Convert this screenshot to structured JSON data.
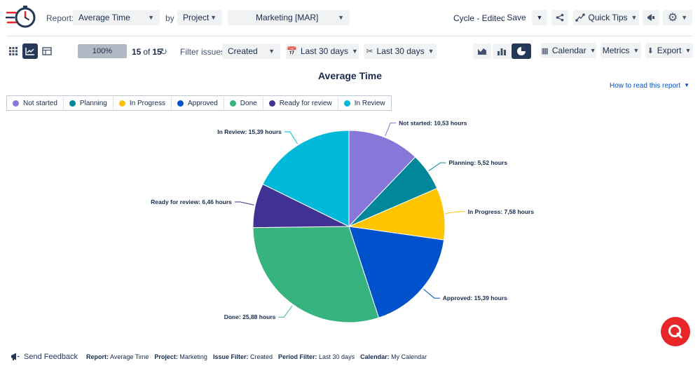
{
  "header": {
    "report_label": "Report:",
    "report_value": "Average Time",
    "by_label": "by",
    "by_value": "Project",
    "project_value": "Marketing [MAR]",
    "cycle_status": "Cycle - Edited",
    "save_label": "Save",
    "quick_tips_label": "Quick Tips"
  },
  "toolbar": {
    "progress_value": "100%",
    "progress_fraction": 1.0,
    "count_current": "15",
    "count_of": "of",
    "count_total": "15",
    "filter_label": "Filter issues:",
    "filter_value": "Created",
    "period_filter": "Last 30 days",
    "period_compare": "Last 30 days",
    "calendar_label": "Calendar",
    "metrics_label": "Metrics",
    "export_label": "Export"
  },
  "chart_title": "Average Time",
  "help_link": "How to read this report",
  "colors": {
    "Not started": "#8777d9",
    "Planning": "#00879a",
    "In Progress": "#ffc400",
    "Approved": "#0052cc",
    "Done": "#36b37e",
    "Ready for review": "#403294",
    "In Review": "#00b8d9",
    "accent": "#0052cc",
    "brand_red": "#e8262a"
  },
  "chart_data": {
    "type": "pie",
    "title": "Average Time",
    "unit": "hours",
    "categories": [
      "Not started",
      "Planning",
      "In Progress",
      "Approved",
      "Done",
      "Ready for review",
      "In Review"
    ],
    "values": [
      10.53,
      5.52,
      7.58,
      15.39,
      25.88,
      6.46,
      15.39
    ],
    "labels": [
      "Not started: 10,53 hours",
      "Planning: 5,52 hours",
      "In Progress: 7,58 hours",
      "Approved: 15,39 hours",
      "Done: 25,88 hours",
      "Ready for review: 6,46 hours",
      "In Review: 15,39 hours"
    ],
    "legend_position": "top-left"
  },
  "footer": {
    "send_feedback": "Send Feedback",
    "report_label": "Report:",
    "report_value": "Average Time",
    "project_label": "Project:",
    "project_value": "Marketing",
    "issue_filter_label": "Issue Filter:",
    "issue_filter_value": "Created",
    "period_filter_label": "Period Filter:",
    "period_filter_value": "Last 30 days",
    "calendar_label": "Calendar:",
    "calendar_value": "My Calendar"
  }
}
